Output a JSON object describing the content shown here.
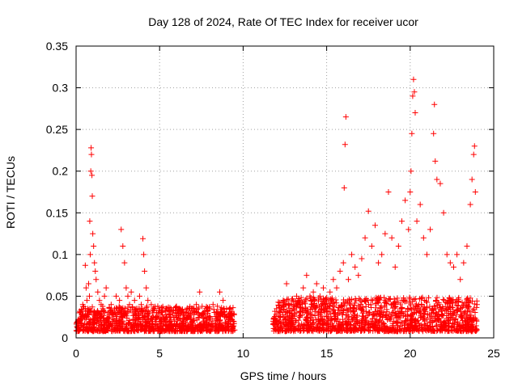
{
  "chart_data": {
    "type": "scatter",
    "title": "Day 128 of 2024, Rate Of TEC Index for receiver ucor",
    "xlabel": "GPS time / hours",
    "ylabel": "ROTI / TECUs",
    "xlim": [
      0,
      25
    ],
    "ylim": [
      0,
      0.35
    ],
    "xticks": [
      0,
      5,
      10,
      15,
      20,
      25
    ],
    "yticks": [
      0,
      0.05,
      0.1,
      0.15,
      0.2,
      0.25,
      0.3,
      0.35
    ],
    "xtick_labels": [
      "0",
      "5",
      "10",
      "15",
      "20",
      "25"
    ],
    "ytick_labels": [
      "0",
      "0.05",
      "0.1",
      "0.15",
      "0.2",
      "0.25",
      "0.3",
      "0.35"
    ],
    "grid": true,
    "marker": "+",
    "color": "#ff0000",
    "series": [
      {
        "name": "ROTI",
        "points": [
          [
            0.1,
            0.02
          ],
          [
            0.2,
            0.03
          ],
          [
            0.3,
            0.015
          ],
          [
            0.4,
            0.04
          ],
          [
            0.5,
            0.025
          ],
          [
            0.55,
            0.087
          ],
          [
            0.6,
            0.06
          ],
          [
            0.65,
            0.045
          ],
          [
            0.7,
            0.035
          ],
          [
            0.75,
            0.065
          ],
          [
            0.8,
            0.05
          ],
          [
            0.82,
            0.14
          ],
          [
            0.85,
            0.1
          ],
          [
            0.88,
            0.2
          ],
          [
            0.9,
            0.228
          ],
          [
            0.92,
            0.22
          ],
          [
            0.95,
            0.195
          ],
          [
            0.97,
            0.17
          ],
          [
            1.0,
            0.125
          ],
          [
            1.05,
            0.11
          ],
          [
            1.1,
            0.09
          ],
          [
            1.15,
            0.08
          ],
          [
            1.2,
            0.07
          ],
          [
            1.3,
            0.055
          ],
          [
            1.4,
            0.045
          ],
          [
            1.5,
            0.04
          ],
          [
            1.6,
            0.035
          ],
          [
            1.7,
            0.05
          ],
          [
            1.8,
            0.06
          ],
          [
            1.9,
            0.03
          ],
          [
            2.0,
            0.025
          ],
          [
            2.1,
            0.04
          ],
          [
            2.2,
            0.02
          ],
          [
            2.3,
            0.035
          ],
          [
            2.4,
            0.05
          ],
          [
            2.5,
            0.03
          ],
          [
            2.6,
            0.045
          ],
          [
            2.7,
            0.13
          ],
          [
            2.8,
            0.11
          ],
          [
            2.9,
            0.09
          ],
          [
            3.0,
            0.06
          ],
          [
            3.1,
            0.05
          ],
          [
            3.2,
            0.04
          ],
          [
            3.3,
            0.055
          ],
          [
            3.4,
            0.03
          ],
          [
            3.5,
            0.045
          ],
          [
            3.6,
            0.025
          ],
          [
            3.7,
            0.035
          ],
          [
            3.8,
            0.05
          ],
          [
            3.9,
            0.04
          ],
          [
            4.0,
            0.119
          ],
          [
            4.05,
            0.1
          ],
          [
            4.1,
            0.08
          ],
          [
            4.2,
            0.06
          ],
          [
            4.3,
            0.045
          ],
          [
            4.4,
            0.03
          ],
          [
            4.5,
            0.04
          ],
          [
            4.6,
            0.025
          ],
          [
            4.7,
            0.035
          ],
          [
            4.8,
            0.02
          ],
          [
            5.0,
            0.03
          ],
          [
            5.2,
            0.025
          ],
          [
            5.4,
            0.035
          ],
          [
            5.6,
            0.02
          ],
          [
            5.8,
            0.03
          ],
          [
            6.0,
            0.025
          ],
          [
            6.2,
            0.035
          ],
          [
            6.4,
            0.02
          ],
          [
            6.6,
            0.03
          ],
          [
            6.8,
            0.025
          ],
          [
            7.0,
            0.035
          ],
          [
            7.2,
            0.04
          ],
          [
            7.4,
            0.055
          ],
          [
            7.6,
            0.03
          ],
          [
            7.8,
            0.025
          ],
          [
            8.0,
            0.035
          ],
          [
            8.2,
            0.04
          ],
          [
            8.4,
            0.03
          ],
          [
            8.6,
            0.055
          ],
          [
            8.8,
            0.045
          ],
          [
            9.0,
            0.035
          ],
          [
            9.2,
            0.025
          ],
          [
            9.4,
            0.02
          ],
          [
            11.8,
            0.02
          ],
          [
            12.0,
            0.035
          ],
          [
            12.2,
            0.03
          ],
          [
            12.4,
            0.045
          ],
          [
            12.6,
            0.065
          ],
          [
            12.8,
            0.04
          ],
          [
            13.0,
            0.035
          ],
          [
            13.2,
            0.05
          ],
          [
            13.4,
            0.045
          ],
          [
            13.6,
            0.06
          ],
          [
            13.8,
            0.075
          ],
          [
            14.0,
            0.05
          ],
          [
            14.2,
            0.055
          ],
          [
            14.4,
            0.065
          ],
          [
            14.6,
            0.05
          ],
          [
            14.8,
            0.06
          ],
          [
            15.0,
            0.045
          ],
          [
            15.2,
            0.055
          ],
          [
            15.4,
            0.07
          ],
          [
            15.6,
            0.06
          ],
          [
            15.8,
            0.08
          ],
          [
            16.0,
            0.09
          ],
          [
            16.05,
            0.18
          ],
          [
            16.1,
            0.232
          ],
          [
            16.15,
            0.265
          ],
          [
            16.3,
            0.07
          ],
          [
            16.5,
            0.1
          ],
          [
            16.7,
            0.085
          ],
          [
            16.9,
            0.075
          ],
          [
            17.1,
            0.095
          ],
          [
            17.3,
            0.12
          ],
          [
            17.5,
            0.152
          ],
          [
            17.7,
            0.11
          ],
          [
            17.9,
            0.135
          ],
          [
            18.1,
            0.09
          ],
          [
            18.3,
            0.1
          ],
          [
            18.5,
            0.125
          ],
          [
            18.7,
            0.175
          ],
          [
            18.9,
            0.12
          ],
          [
            19.1,
            0.085
          ],
          [
            19.3,
            0.11
          ],
          [
            19.5,
            0.14
          ],
          [
            19.7,
            0.165
          ],
          [
            19.9,
            0.13
          ],
          [
            20.0,
            0.175
          ],
          [
            20.05,
            0.2
          ],
          [
            20.1,
            0.245
          ],
          [
            20.15,
            0.29
          ],
          [
            20.2,
            0.31
          ],
          [
            20.25,
            0.295
          ],
          [
            20.3,
            0.27
          ],
          [
            20.4,
            0.14
          ],
          [
            20.6,
            0.16
          ],
          [
            20.8,
            0.12
          ],
          [
            21.0,
            0.1
          ],
          [
            21.2,
            0.13
          ],
          [
            21.4,
            0.245
          ],
          [
            21.45,
            0.28
          ],
          [
            21.5,
            0.212
          ],
          [
            21.6,
            0.19
          ],
          [
            21.8,
            0.185
          ],
          [
            22.0,
            0.15
          ],
          [
            22.2,
            0.1
          ],
          [
            22.4,
            0.09
          ],
          [
            22.6,
            0.085
          ],
          [
            22.8,
            0.1
          ],
          [
            23.0,
            0.07
          ],
          [
            23.2,
            0.09
          ],
          [
            23.4,
            0.11
          ],
          [
            23.6,
            0.16
          ],
          [
            23.7,
            0.19
          ],
          [
            23.8,
            0.22
          ],
          [
            23.85,
            0.23
          ],
          [
            23.9,
            0.175
          ],
          [
            24.0,
            0.04
          ]
        ]
      }
    ]
  }
}
